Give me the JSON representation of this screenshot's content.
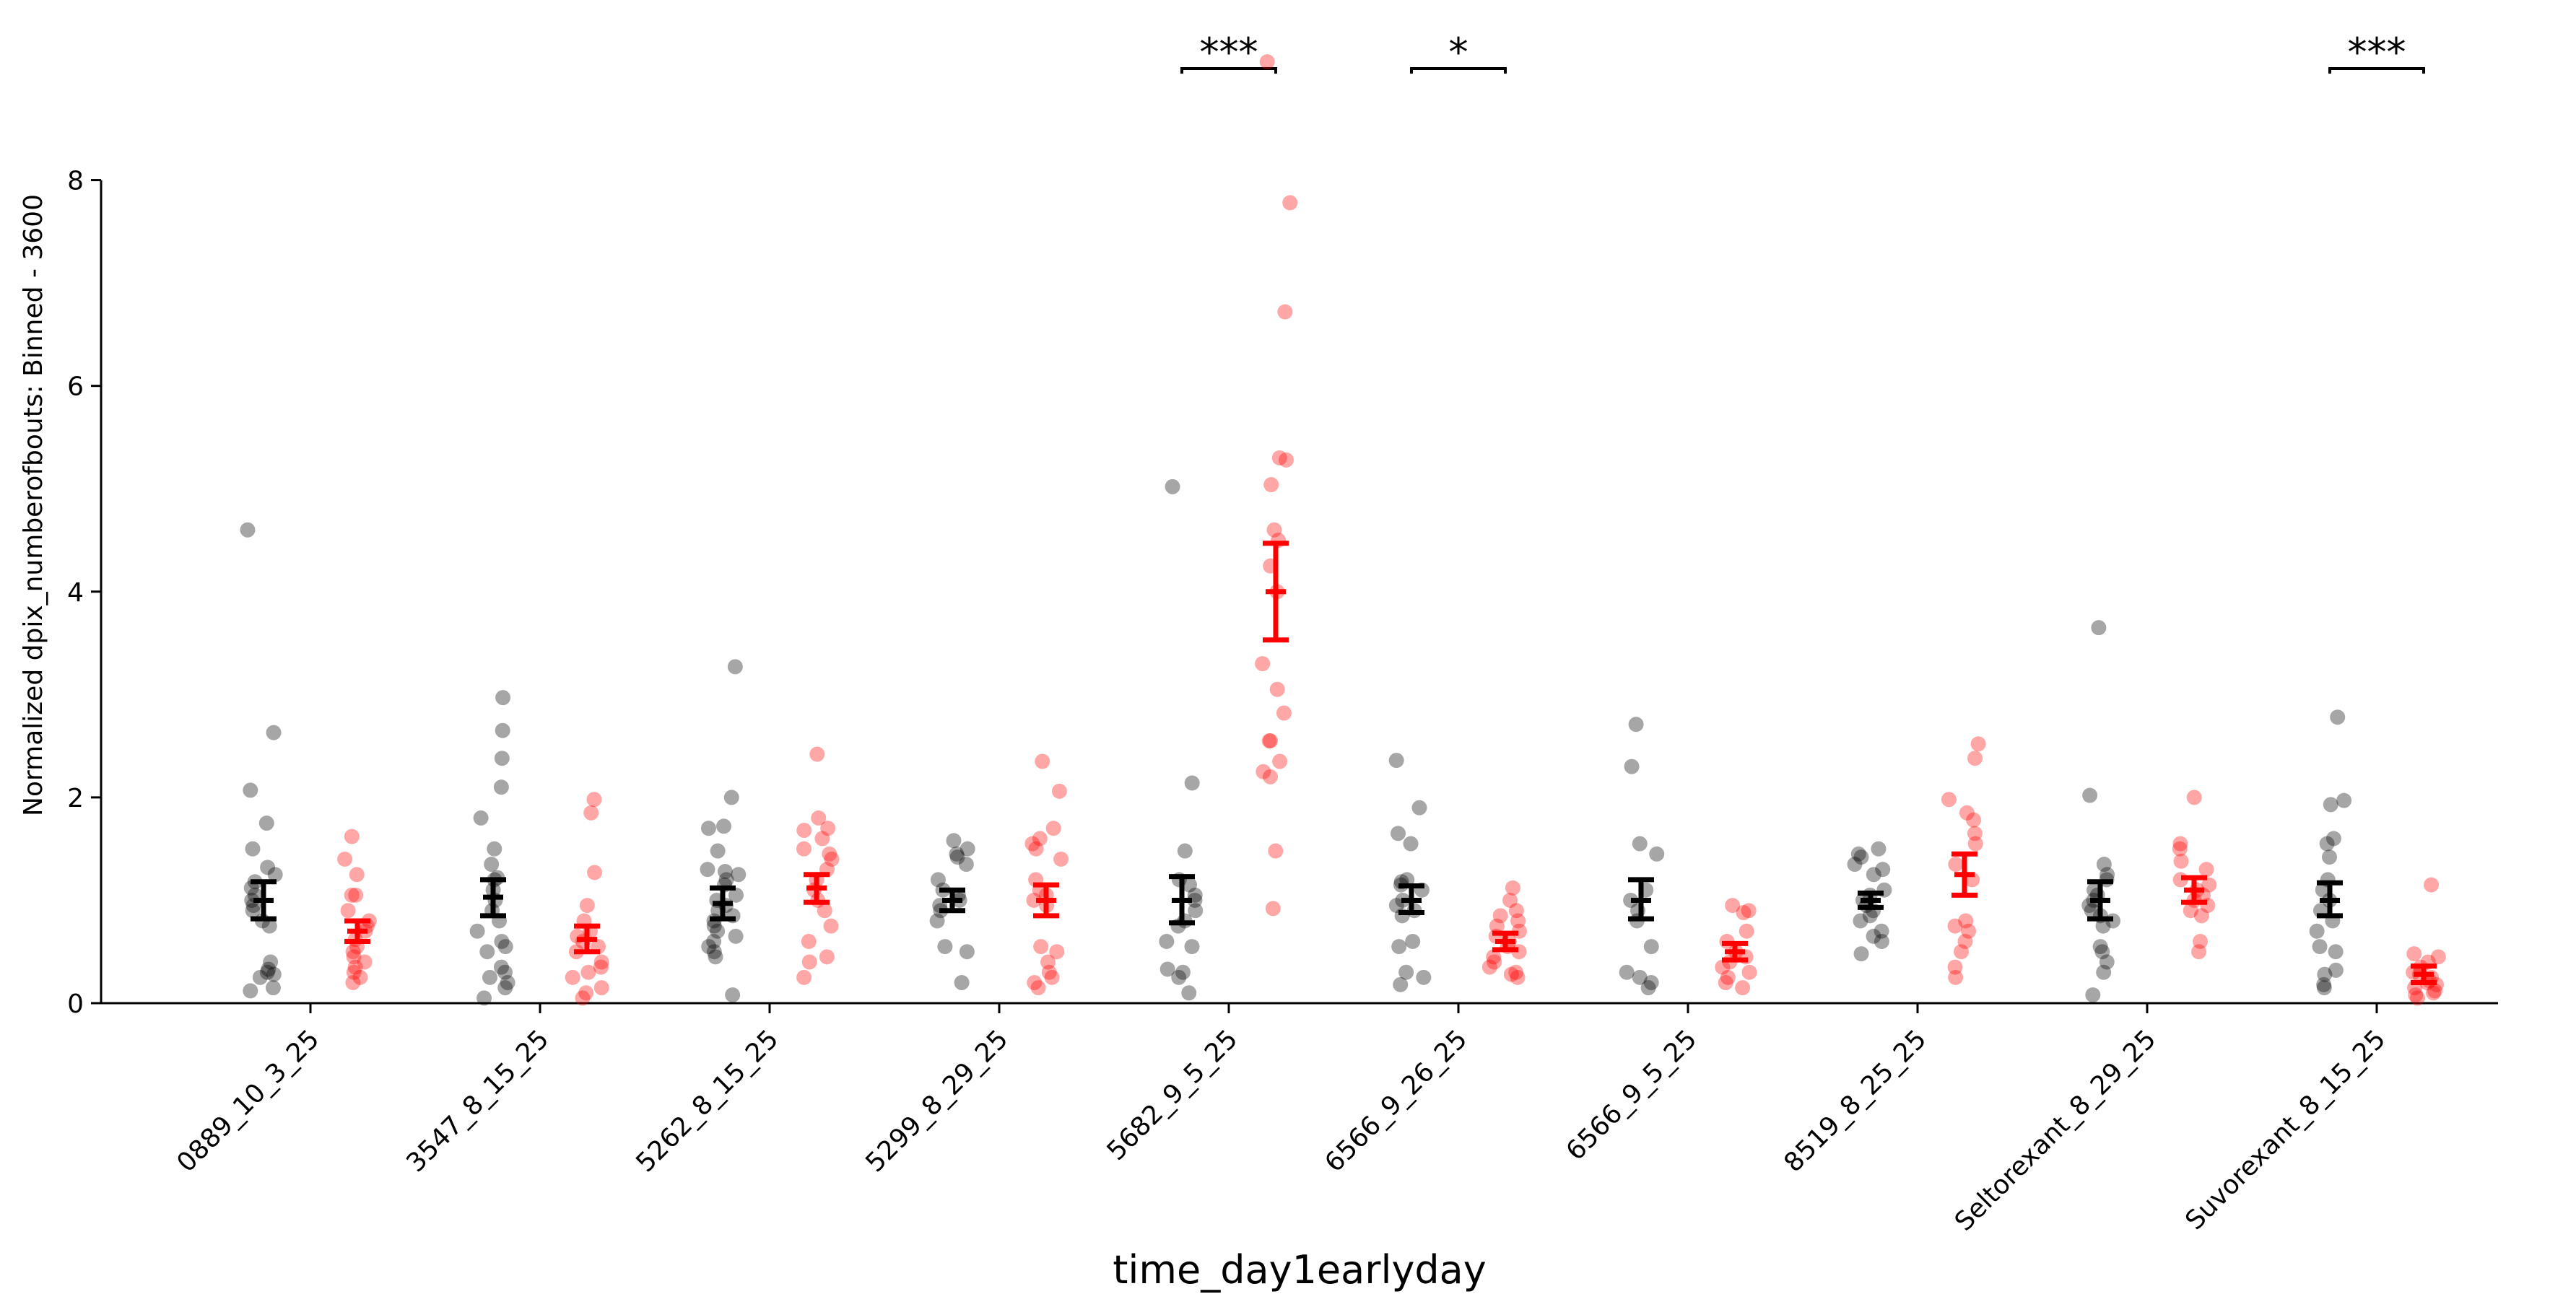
{
  "chart_data": {
    "type": "scatter",
    "xlabel": "time_day1earlyday",
    "ylabel": "Normalized dpix_numberofbouts: Binned - 3600",
    "ylim": [
      0,
      9.4
    ],
    "yticks": [
      0,
      2,
      4,
      6,
      8
    ],
    "grid": false,
    "legend": "none",
    "categories": [
      "0889_10_3_25",
      "3547_8_15_25",
      "5262_8_15_25",
      "5299_8_29_25",
      "5682_9_5_25",
      "6566_9_26_25",
      "6566_9_5_25",
      "8519_8_25_25",
      "Seltorexant_8_29_25",
      "Suvorexant_8_15_25"
    ],
    "colors": {
      "control": "#000000",
      "treated": "#ff0000"
    },
    "groups": [
      {
        "category": "0889_10_3_25",
        "control": {
          "mean": 1.0,
          "err": [
            0.82,
            1.18
          ],
          "points": [
            4.6,
            2.63,
            2.07,
            1.75,
            1.5,
            1.32,
            1.25,
            1.18,
            1.12,
            1.05,
            1.0,
            0.95,
            0.9,
            0.8,
            0.75,
            0.4,
            0.33,
            0.3,
            0.28,
            0.25,
            0.15,
            0.12
          ]
        },
        "treated": {
          "mean": 0.7,
          "err": [
            0.6,
            0.8
          ],
          "points": [
            1.62,
            1.4,
            1.25,
            1.05,
            1.05,
            0.9,
            0.8,
            0.75,
            0.7,
            0.62,
            0.55,
            0.5,
            0.45,
            0.4,
            0.35,
            0.3,
            0.25,
            0.2
          ]
        }
      },
      {
        "category": "3547_8_15_25",
        "control": {
          "mean": 1.03,
          "err": [
            0.85,
            1.2
          ],
          "points": [
            2.97,
            2.65,
            2.38,
            2.1,
            1.8,
            1.5,
            1.35,
            1.22,
            1.2,
            1.1,
            1.0,
            0.9,
            0.8,
            0.7,
            0.6,
            0.55,
            0.5,
            0.35,
            0.3,
            0.25,
            0.2,
            0.15,
            0.05
          ]
        },
        "treated": {
          "mean": 0.62,
          "err": [
            0.5,
            0.75
          ],
          "points": [
            1.98,
            1.85,
            1.27,
            0.95,
            0.8,
            0.7,
            0.65,
            0.6,
            0.55,
            0.5,
            0.4,
            0.35,
            0.3,
            0.25,
            0.15,
            0.1,
            0.05
          ]
        }
      },
      {
        "category": "5262_8_15_25",
        "control": {
          "mean": 0.97,
          "err": [
            0.82,
            1.12
          ],
          "points": [
            3.27,
            2.0,
            1.72,
            1.7,
            1.48,
            1.3,
            1.28,
            1.25,
            1.2,
            1.15,
            1.05,
            1.0,
            0.95,
            0.9,
            0.85,
            0.8,
            0.75,
            0.7,
            0.65,
            0.6,
            0.55,
            0.5,
            0.45,
            0.08
          ]
        },
        "treated": {
          "mean": 1.12,
          "err": [
            0.98,
            1.25
          ],
          "points": [
            2.42,
            1.8,
            1.7,
            1.68,
            1.6,
            1.5,
            1.45,
            1.4,
            1.3,
            1.2,
            1.1,
            1.0,
            0.9,
            0.75,
            0.6,
            0.45,
            0.4,
            0.25
          ]
        }
      },
      {
        "category": "5299_8_29_25",
        "control": {
          "mean": 1.0,
          "err": [
            0.9,
            1.1
          ],
          "points": [
            1.58,
            1.5,
            1.45,
            1.42,
            1.35,
            1.2,
            1.1,
            1.05,
            1.0,
            0.95,
            0.9,
            0.8,
            0.55,
            0.5,
            0.2
          ]
        },
        "treated": {
          "mean": 1.0,
          "err": [
            0.85,
            1.15
          ],
          "points": [
            2.35,
            2.06,
            1.7,
            1.6,
            1.55,
            1.5,
            1.4,
            1.2,
            1.1,
            1.05,
            1.0,
            0.95,
            0.55,
            0.5,
            0.4,
            0.3,
            0.25,
            0.2,
            0.15
          ]
        }
      },
      {
        "category": "5682_9_5_25",
        "control": {
          "mean": 1.0,
          "err": [
            0.78,
            1.23
          ],
          "points": [
            5.02,
            2.14,
            1.48,
            1.2,
            1.15,
            1.05,
            1.0,
            0.9,
            0.8,
            0.75,
            0.6,
            0.55,
            0.33,
            0.3,
            0.25,
            0.1
          ]
        },
        "treated": {
          "mean": 4.0,
          "err": [
            3.53,
            4.47
          ],
          "points": [
            9.15,
            7.78,
            6.72,
            5.3,
            5.28,
            5.04,
            4.6,
            4.5,
            4.25,
            4.0,
            3.3,
            3.05,
            2.82,
            2.55,
            2.55,
            2.35,
            2.25,
            2.2,
            1.48,
            0.92
          ]
        }
      },
      {
        "category": "6566_9_26_25",
        "control": {
          "mean": 1.0,
          "err": [
            0.88,
            1.14
          ],
          "points": [
            2.36,
            1.9,
            1.65,
            1.55,
            1.2,
            1.18,
            1.15,
            1.1,
            1.0,
            0.95,
            0.9,
            0.85,
            0.6,
            0.55,
            0.3,
            0.25,
            0.18
          ]
        },
        "treated": {
          "mean": 0.6,
          "err": [
            0.52,
            0.68
          ],
          "points": [
            1.12,
            1.0,
            0.9,
            0.85,
            0.8,
            0.75,
            0.7,
            0.65,
            0.6,
            0.55,
            0.5,
            0.45,
            0.4,
            0.35,
            0.3,
            0.28,
            0.25
          ]
        }
      },
      {
        "category": "6566_9_5_25",
        "control": {
          "mean": 1.0,
          "err": [
            0.82,
            1.2
          ],
          "points": [
            2.71,
            2.3,
            1.55,
            1.45,
            1.1,
            1.0,
            0.9,
            0.8,
            0.55,
            0.3,
            0.25,
            0.2,
            0.15
          ]
        },
        "treated": {
          "mean": 0.5,
          "err": [
            0.42,
            0.58
          ],
          "points": [
            0.95,
            0.9,
            0.88,
            0.7,
            0.6,
            0.5,
            0.45,
            0.4,
            0.35,
            0.3,
            0.25,
            0.2,
            0.15
          ]
        }
      },
      {
        "category": "8519_8_25_25",
        "control": {
          "mean": 1.0,
          "err": [
            0.93,
            1.07
          ],
          "points": [
            1.5,
            1.45,
            1.42,
            1.35,
            1.3,
            1.25,
            1.1,
            1.05,
            1.0,
            0.95,
            0.9,
            0.85,
            0.8,
            0.7,
            0.65,
            0.6,
            0.48
          ]
        },
        "treated": {
          "mean": 1.25,
          "err": [
            1.05,
            1.45
          ],
          "points": [
            2.52,
            2.38,
            1.98,
            1.85,
            1.78,
            1.65,
            1.55,
            1.35,
            1.2,
            0.8,
            0.75,
            0.7,
            0.6,
            0.5,
            0.35,
            0.25
          ]
        }
      },
      {
        "category": "Seltorexant_8_29_25",
        "control": {
          "mean": 1.0,
          "err": [
            0.82,
            1.18
          ],
          "points": [
            3.65,
            2.02,
            1.35,
            1.25,
            1.2,
            1.1,
            1.05,
            1.0,
            0.95,
            0.9,
            0.85,
            0.8,
            0.75,
            0.55,
            0.5,
            0.4,
            0.3,
            0.08
          ]
        },
        "treated": {
          "mean": 1.1,
          "err": [
            0.98,
            1.22
          ],
          "points": [
            2.0,
            1.55,
            1.5,
            1.38,
            1.3,
            1.2,
            1.15,
            1.1,
            1.05,
            1.0,
            0.95,
            0.9,
            0.85,
            0.6,
            0.5
          ]
        }
      },
      {
        "category": "Suvorexant_8_15_25",
        "control": {
          "mean": 1.0,
          "err": [
            0.85,
            1.17
          ],
          "points": [
            2.78,
            1.97,
            1.93,
            1.6,
            1.55,
            1.42,
            1.2,
            1.1,
            1.0,
            0.9,
            0.8,
            0.7,
            0.55,
            0.5,
            0.32,
            0.28,
            0.18,
            0.15
          ]
        },
        "treated": {
          "mean": 0.28,
          "err": [
            0.2,
            0.36
          ],
          "points": [
            1.15,
            0.48,
            0.45,
            0.4,
            0.35,
            0.3,
            0.28,
            0.25,
            0.22,
            0.2,
            0.18,
            0.15,
            0.12,
            0.1,
            0.08,
            0.05
          ]
        }
      }
    ],
    "annotations": [
      {
        "category": "5682_9_5_25",
        "text": "***"
      },
      {
        "category": "6566_9_26_25",
        "text": "*"
      },
      {
        "category": "Suvorexant_8_15_25",
        "text": "***"
      }
    ]
  }
}
